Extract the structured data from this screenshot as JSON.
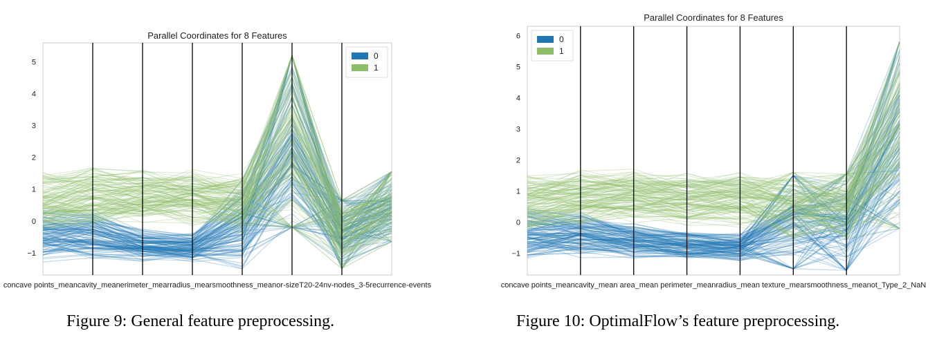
{
  "chart_data": [
    {
      "type": "parallel_coordinates",
      "title": "Parallel Coordinates for 8 Features",
      "axes": [
        "concave points_mean",
        "concavity_mean",
        "perimeter_mean",
        "radius_mean",
        "smoothness_mean",
        "tumor-size_20-24",
        "inv-nodes_3-5",
        "recurrence-events"
      ],
      "axes_label_text": "concave points_meancavity_meanerimeter_mearradius_mearsmoothness_meanor-sizeT20-24nv-nodes_3-5recurrence-events",
      "ylim": [
        -1.7,
        5.6
      ],
      "yticks": [
        -1,
        0,
        1,
        2,
        3,
        4,
        5
      ],
      "legend": {
        "entries": [
          "0",
          "1"
        ],
        "position": "top-right"
      },
      "series": [
        {
          "name": "0",
          "color": "#1f77b4",
          "ranges": [
            [
              -1.3,
              0.5
            ],
            [
              -1.2,
              0.4
            ],
            [
              -1.3,
              -0.2
            ],
            [
              -1.3,
              -0.3
            ],
            [
              -1.6,
              1.5
            ],
            [
              -0.2,
              5.2
            ],
            [
              -1.5,
              0.65
            ],
            [
              -0.65,
              1.55
            ]
          ]
        },
        {
          "name": "1",
          "color": "#8fbe6a",
          "ranges": [
            [
              -0.5,
              1.65
            ],
            [
              -0.3,
              1.75
            ],
            [
              -0.2,
              1.7
            ],
            [
              -0.2,
              1.7
            ],
            [
              -0.5,
              1.55
            ],
            [
              -0.2,
              5.2
            ],
            [
              -1.5,
              0.65
            ],
            [
              -0.65,
              1.55
            ]
          ]
        }
      ]
    },
    {
      "type": "parallel_coordinates",
      "title": "Parallel Coordinates for 8 Features",
      "axes": [
        "concave points_mean",
        "concavity_mean",
        "area_mean",
        "perimeter_mean",
        "radius_mean",
        "texture_mean",
        "smoothness_mean",
        "Type_2_NaN"
      ],
      "axes_label_text": "concave points_meancavity_mean area_mean perimeter_meanradius_mean texture_mearsmoothness_meanot_Type_2_NaN",
      "ylim": [
        -1.7,
        6.3
      ],
      "yticks": [
        -1,
        0,
        1,
        2,
        3,
        4,
        5,
        6
      ],
      "legend": {
        "entries": [
          "0",
          "1"
        ],
        "position": "top-left"
      },
      "series": [
        {
          "name": "0",
          "color": "#1f77b4",
          "ranges": [
            [
              -1.3,
              0.5
            ],
            [
              -1.2,
              0.4
            ],
            [
              -1.2,
              0.0
            ],
            [
              -1.3,
              -0.2
            ],
            [
              -1.3,
              -0.3
            ],
            [
              -1.5,
              1.5
            ],
            [
              -1.55,
              1.55
            ],
            [
              -0.2,
              5.8
            ]
          ]
        },
        {
          "name": "1",
          "color": "#8fbe6a",
          "ranges": [
            [
              -0.5,
              1.65
            ],
            [
              -0.3,
              1.75
            ],
            [
              -0.2,
              1.8
            ],
            [
              -0.2,
              1.7
            ],
            [
              -0.2,
              1.7
            ],
            [
              -0.5,
              1.6
            ],
            [
              -0.5,
              1.55
            ],
            [
              -0.2,
              5.8
            ]
          ]
        }
      ]
    }
  ],
  "captions": {
    "left": "Figure 9: General feature preprocessing.",
    "right": "Figure 10: OptimalFlow’s feature preprocessing."
  }
}
